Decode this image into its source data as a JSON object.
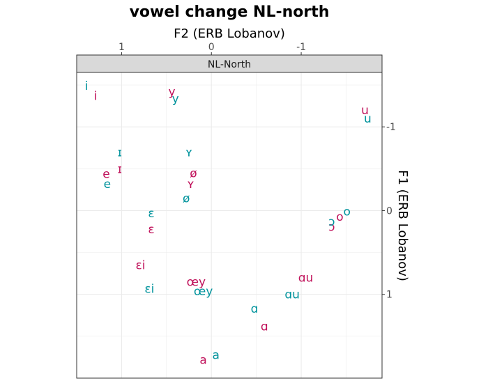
{
  "chart_data": {
    "type": "scatter",
    "title": "vowel change NL-north",
    "facet": "NL-North",
    "xlabel": "F2 (ERB Lobanov)",
    "ylabel": "F1 (ERB Lobanov)",
    "xlim": [
      1.5,
      -1.9
    ],
    "ylim": [
      -1.65,
      2.0
    ],
    "x_reversed": true,
    "y_reversed": true,
    "x_axis_position": "top",
    "y_axis_position": "right",
    "x_ticks": [
      1,
      0,
      -1
    ],
    "x_tick_labels": [
      "1",
      "0",
      "-1"
    ],
    "y_ticks": [
      -1,
      0,
      1
    ],
    "y_tick_labels": [
      "-1",
      "0",
      "1"
    ],
    "grid": true,
    "series": [
      {
        "color": "#c0115a",
        "points": [
          {
            "label": "i",
            "x": 1.29,
            "y": -1.37
          },
          {
            "label": "y",
            "x": 0.44,
            "y": -1.42
          },
          {
            "label": "u",
            "x": -1.71,
            "y": -1.2
          },
          {
            "label": "ɪ",
            "x": 1.02,
            "y": -0.5
          },
          {
            "label": "e",
            "x": 1.17,
            "y": -0.44
          },
          {
            "label": "ø",
            "x": 0.2,
            "y": -0.45
          },
          {
            "label": "ʏ",
            "x": 0.23,
            "y": -0.32
          },
          {
            "label": "o",
            "x": -1.43,
            "y": 0.07
          },
          {
            "label": "ɔ",
            "x": -1.34,
            "y": 0.19
          },
          {
            "label": "ɛ",
            "x": 0.67,
            "y": 0.22
          },
          {
            "label": "ɛi",
            "x": 0.79,
            "y": 0.65
          },
          {
            "label": "œy",
            "x": 0.17,
            "y": 0.85
          },
          {
            "label": "ɑu",
            "x": -1.05,
            "y": 0.8
          },
          {
            "label": "ɑ",
            "x": -0.59,
            "y": 1.38
          },
          {
            "label": "a",
            "x": 0.09,
            "y": 1.78
          }
        ]
      },
      {
        "color": "#00939c",
        "points": [
          {
            "label": "i",
            "x": 1.39,
            "y": -1.49
          },
          {
            "label": "y",
            "x": 0.4,
            "y": -1.34
          },
          {
            "label": "u",
            "x": -1.74,
            "y": -1.1
          },
          {
            "label": "ɪ",
            "x": 1.02,
            "y": -0.7
          },
          {
            "label": "ʏ",
            "x": 0.25,
            "y": -0.7
          },
          {
            "label": "e",
            "x": 1.16,
            "y": -0.32
          },
          {
            "label": "ø",
            "x": 0.28,
            "y": -0.15
          },
          {
            "label": "o",
            "x": -1.51,
            "y": 0.01
          },
          {
            "label": "ɔ",
            "x": -1.34,
            "y": 0.13
          },
          {
            "label": "ɛ",
            "x": 0.67,
            "y": 0.03
          },
          {
            "label": "ɛi",
            "x": 0.69,
            "y": 0.93
          },
          {
            "label": "œy",
            "x": 0.09,
            "y": 0.96
          },
          {
            "label": "ɑu",
            "x": -0.9,
            "y": 1.0
          },
          {
            "label": "ɑ",
            "x": -0.48,
            "y": 1.17
          },
          {
            "label": "a",
            "x": -0.05,
            "y": 1.72
          }
        ]
      }
    ]
  }
}
